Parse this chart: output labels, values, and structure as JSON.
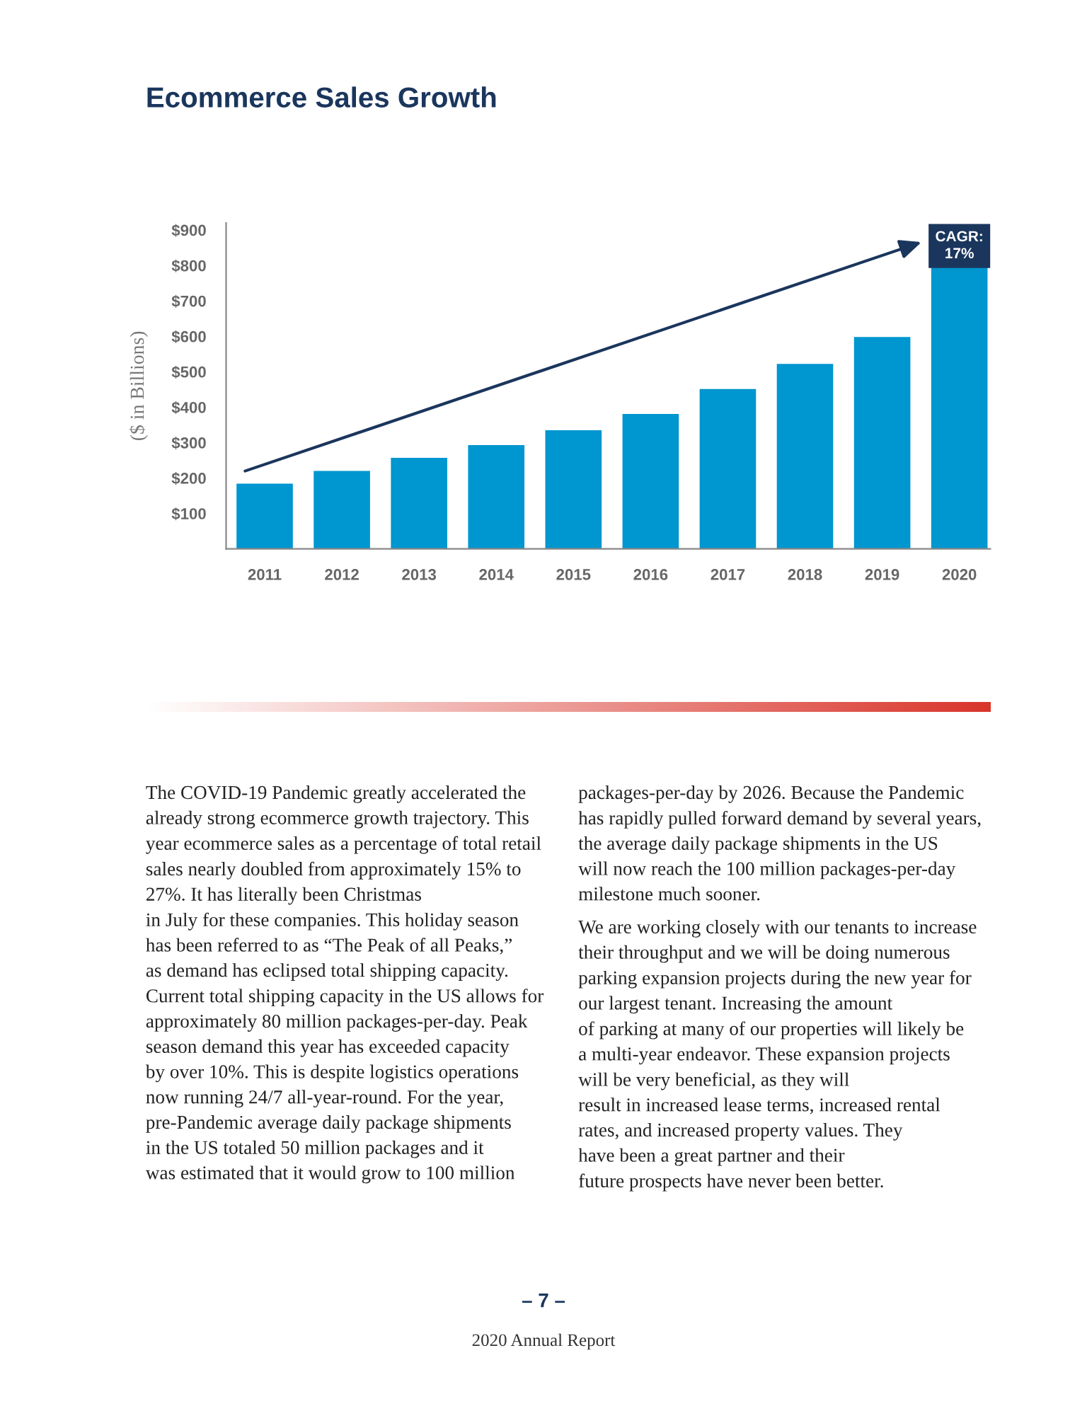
{
  "chart_data": {
    "type": "bar",
    "title": "Ecommerce Sales Growth",
    "ylabel": "($ in Billions)",
    "categories": [
      "2011",
      "2012",
      "2013",
      "2014",
      "2015",
      "2016",
      "2017",
      "2018",
      "2019",
      "2020"
    ],
    "series": [
      {
        "color": "#0096cf",
        "values": [
          184,
          220,
          257,
          293,
          335,
          381,
          451,
          522,
          598,
          795
        ]
      }
    ],
    "ylim": [
      0,
      920
    ],
    "yticks": [
      {
        "value": 100,
        "label": "$100"
      },
      {
        "value": 200,
        "label": "$200"
      },
      {
        "value": 300,
        "label": "$300"
      },
      {
        "value": 400,
        "label": "$400"
      },
      {
        "value": 500,
        "label": "$500"
      },
      {
        "value": 600,
        "label": "$600"
      },
      {
        "value": 700,
        "label": "$700"
      },
      {
        "value": 800,
        "label": "$800"
      },
      {
        "value": 900,
        "label": "$900"
      }
    ],
    "grid": false,
    "legend": false,
    "annotations": [
      {
        "text": "CAGR:\n17%",
        "x": "2020",
        "y": 855
      },
      "The COVID-19 Pandemic greatly accelerated the\nalready strong ecommerce growth trajectory. This\nyear ecommerce sales as a percentage of total retail\nsales nearly doubled from approximately 15% to\n27%. It has literally been Christmas\nin July for these companies. This holiday season\nhas been referred to as “The Peak of all Peaks,”\nas demand has eclipsed total shipping capacity.\nCurrent total shipping capacity in the US allows for\napproximately 80 million packages-per-day. Peak\nseason demand this year has exceeded capacity\nby over 10%. This is despite logistics operations\nnow running 24/7 all-year-round. For the year,\npre-Pandemic average daily package shipments\nin the US totaled 50 million packages and it\nwas estimated that it would grow to 100 million",
      "packages-per-day by 2026. Because the Pandemic\nhas rapidly pulled forward demand by several years,\nthe average daily package shipments in the US\nwill now reach the 100 million packages-per-day\nmilestone much sooner.",
      "We are working closely with our tenants to increase\ntheir throughput and we will be doing numerous\nparking expansion projects during the new year for\nour largest tenant. Increasing the amount\nof parking at many of our properties will likely be\na multi-year endeavor. These expansion projects\nwill be very beneficial, as they will\nresult in increased lease terms, increased rental\nrates, and increased property values. They\nhave been a great partner and their\nfuture prospects have never been better.",
      "– 7 –",
      "2020 Annual Report"
    ]
  }
}
